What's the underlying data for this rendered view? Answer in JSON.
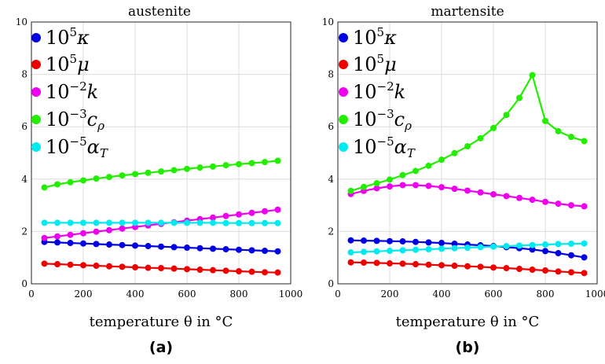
{
  "chart_data": [
    {
      "type": "line",
      "title": "austenite",
      "xlabel": "temperature θ in °C",
      "panel_label": "(a)",
      "xlim": [
        0,
        1000
      ],
      "ylim": [
        0,
        10
      ],
      "xticks": [
        "0",
        "200",
        "400",
        "600",
        "800",
        "1000"
      ],
      "yticks": [
        "0",
        "2",
        "4",
        "6",
        "8",
        "10"
      ],
      "grid": true,
      "legend_position": "top-left",
      "x": [
        50,
        100,
        150,
        200,
        250,
        300,
        350,
        400,
        450,
        500,
        550,
        600,
        650,
        700,
        750,
        800,
        850,
        900,
        950
      ],
      "series": [
        {
          "name": "10⁵κ",
          "color": "#0000e0",
          "values": [
            1.6,
            1.58,
            1.56,
            1.54,
            1.52,
            1.5,
            1.48,
            1.46,
            1.44,
            1.42,
            1.4,
            1.38,
            1.36,
            1.34,
            1.32,
            1.3,
            1.28,
            1.26,
            1.24
          ]
        },
        {
          "name": "10⁵μ",
          "color": "#ee0000",
          "values": [
            0.77,
            0.75,
            0.73,
            0.71,
            0.69,
            0.67,
            0.65,
            0.63,
            0.61,
            0.6,
            0.58,
            0.56,
            0.54,
            0.52,
            0.5,
            0.48,
            0.46,
            0.44,
            0.43
          ]
        },
        {
          "name": "10⁻²k",
          "color": "#ee00ee",
          "values": [
            1.75,
            1.81,
            1.87,
            1.93,
            1.99,
            2.05,
            2.11,
            2.17,
            2.23,
            2.29,
            2.35,
            2.41,
            2.47,
            2.53,
            2.59,
            2.65,
            2.71,
            2.77,
            2.83
          ]
        },
        {
          "name": "10⁻³cρ",
          "color": "#22ee00",
          "values": [
            3.68,
            3.8,
            3.88,
            3.95,
            4.02,
            4.08,
            4.14,
            4.19,
            4.24,
            4.29,
            4.34,
            4.39,
            4.44,
            4.48,
            4.53,
            4.57,
            4.61,
            4.65,
            4.7
          ]
        },
        {
          "name": "10⁻⁵αT",
          "color": "#00eaf0",
          "values": [
            2.33,
            2.33,
            2.33,
            2.33,
            2.33,
            2.33,
            2.33,
            2.33,
            2.33,
            2.33,
            2.33,
            2.33,
            2.33,
            2.33,
            2.32,
            2.32,
            2.32,
            2.32,
            2.32
          ]
        }
      ]
    },
    {
      "type": "line",
      "title": "martensite",
      "xlabel": "temperature θ in °C",
      "panel_label": "(b)",
      "xlim": [
        0,
        1000
      ],
      "ylim": [
        0,
        10
      ],
      "xticks": [
        "0",
        "200",
        "400",
        "600",
        "800",
        "1000"
      ],
      "yticks": [
        "0",
        "2",
        "4",
        "6",
        "8",
        "10"
      ],
      "grid": true,
      "legend_position": "top-left",
      "x": [
        50,
        100,
        150,
        200,
        250,
        300,
        350,
        400,
        450,
        500,
        550,
        600,
        650,
        700,
        750,
        800,
        850,
        900,
        950
      ],
      "series": [
        {
          "name": "10⁵κ",
          "color": "#0000e0",
          "values": [
            1.66,
            1.65,
            1.64,
            1.63,
            1.62,
            1.6,
            1.58,
            1.56,
            1.53,
            1.5,
            1.47,
            1.44,
            1.4,
            1.36,
            1.31,
            1.25,
            1.17,
            1.09,
            1.01
          ]
        },
        {
          "name": "10⁵μ",
          "color": "#ee0000",
          "values": [
            0.82,
            0.81,
            0.8,
            0.78,
            0.77,
            0.75,
            0.73,
            0.71,
            0.69,
            0.67,
            0.65,
            0.62,
            0.6,
            0.57,
            0.54,
            0.51,
            0.47,
            0.44,
            0.41
          ]
        },
        {
          "name": "10⁻²k",
          "color": "#ee00ee",
          "values": [
            3.43,
            3.55,
            3.65,
            3.72,
            3.77,
            3.77,
            3.74,
            3.69,
            3.63,
            3.56,
            3.49,
            3.42,
            3.35,
            3.28,
            3.21,
            3.13,
            3.06,
            3.0,
            2.96
          ]
        },
        {
          "name": "10⁻³cρ",
          "color": "#22ee00",
          "values": [
            3.55,
            3.7,
            3.84,
            3.98,
            4.15,
            4.31,
            4.51,
            4.74,
            4.99,
            5.25,
            5.56,
            5.95,
            6.45,
            7.1,
            7.97,
            6.22,
            5.83,
            5.61,
            5.45
          ]
        },
        {
          "name": "10⁻⁵αT",
          "color": "#00eaf0",
          "values": [
            1.2,
            1.22,
            1.24,
            1.26,
            1.28,
            1.3,
            1.32,
            1.34,
            1.36,
            1.38,
            1.4,
            1.42,
            1.44,
            1.46,
            1.48,
            1.5,
            1.52,
            1.53,
            1.54
          ]
        }
      ]
    }
  ]
}
